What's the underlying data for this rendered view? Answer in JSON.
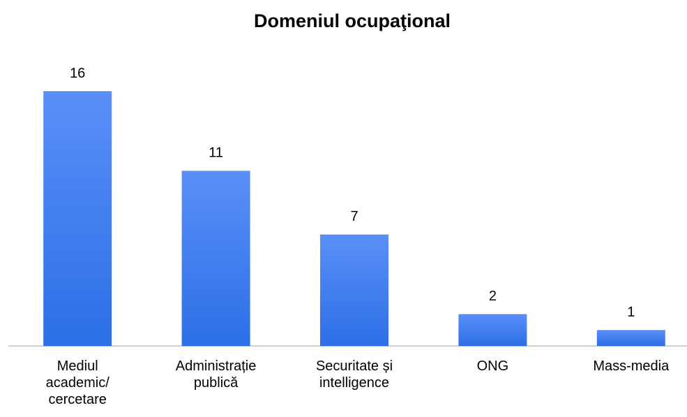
{
  "chart_data": {
    "type": "bar",
    "title": "Domeniul ocupaţional",
    "categories": [
      "Mediul academic/cercetare",
      "Administrație publică",
      "Securitate și intelligence",
      "ONG",
      "Mass-media"
    ],
    "values": [
      16,
      11,
      7,
      2,
      1
    ]
  }
}
